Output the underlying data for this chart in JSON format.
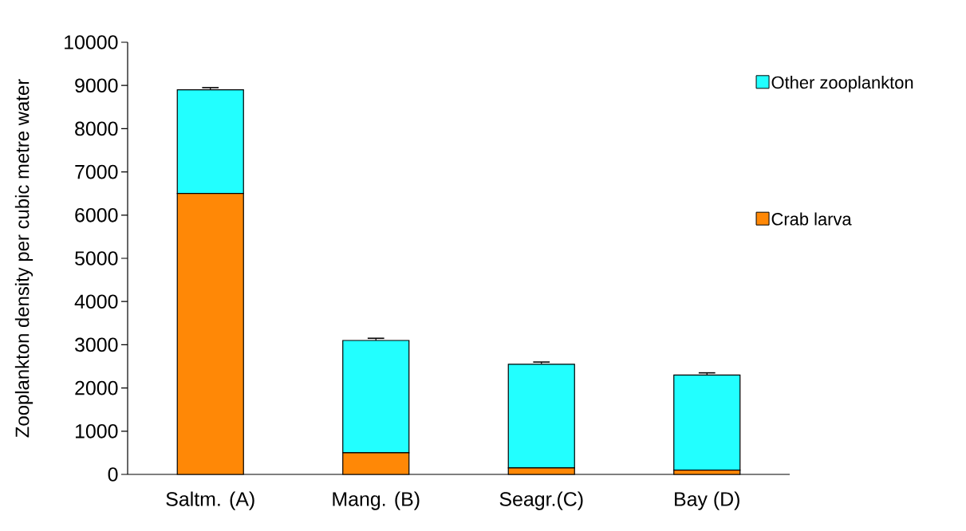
{
  "chart_data": {
    "type": "bar",
    "stacked": true,
    "ylabel": "Zooplankton density per cubic metre water",
    "categories": [
      "Saltm. (A)",
      "Mang. (B)",
      "Seagr.(C)",
      "Bay (D)"
    ],
    "series": [
      {
        "name": "Crab larva",
        "color": "#ff8806",
        "values": [
          6500,
          500,
          150,
          100
        ],
        "errors": [
          [
            6500,
            6550
          ],
          [
            500,
            520
          ],
          [
            150,
            170
          ],
          [
            100,
            120
          ]
        ]
      },
      {
        "name": "Other zooplankton",
        "color": "#22ffff",
        "values": [
          2400,
          2600,
          2400,
          2200
        ],
        "errors": [
          [
            8900,
            8950
          ],
          [
            3100,
            3150
          ],
          [
            2550,
            2600
          ],
          [
            2300,
            2350
          ]
        ]
      }
    ],
    "ylim": [
      0,
      10000
    ],
    "yticks": [
      0,
      1000,
      2000,
      3000,
      4000,
      5000,
      6000,
      7000,
      8000,
      9000,
      10000
    ],
    "legend": "right",
    "grid": false
  }
}
